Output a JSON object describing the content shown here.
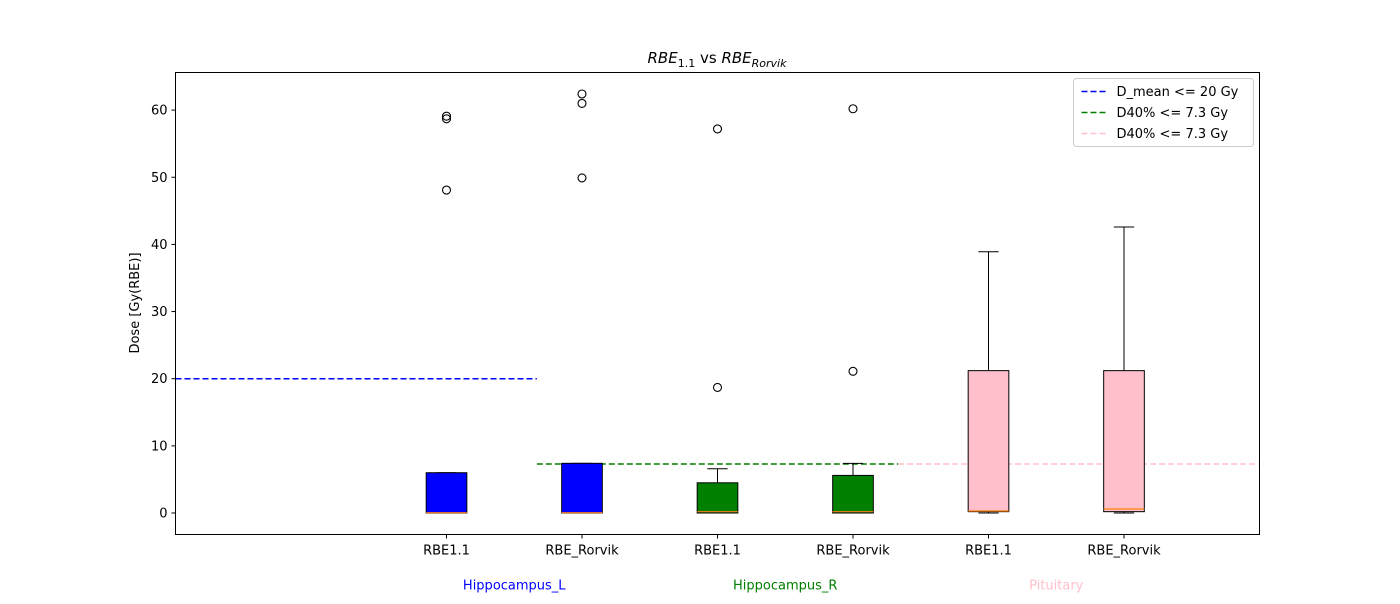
{
  "chart_data": {
    "type": "box",
    "title": {
      "a_base": "RBE",
      "a_sub": "1.1",
      "middle": " vs ",
      "b_base": "RBE",
      "b_sub": "Rorvik"
    },
    "ylabel": "Dose [Gy(RBE)]",
    "ylim": [
      -3.2,
      65.6
    ],
    "yticks": [
      0,
      10,
      20,
      30,
      40,
      50,
      60
    ],
    "categories": [
      "RBE1.1",
      "RBE_Rorvik",
      "RBE1.1",
      "RBE_Rorvik",
      "RBE1.1",
      "RBE_Rorvik"
    ],
    "groups": [
      {
        "name": "Hippocampus_L",
        "color": "#0000ff"
      },
      {
        "name": "Hippocampus_R",
        "color": "#008000"
      },
      {
        "name": "Pituitary",
        "color": "#ffc0cb"
      }
    ],
    "boxes": [
      {
        "group": 0,
        "category": "RBE1.1",
        "whisker_low": 0.0,
        "q1": 0.0,
        "median": 0.05,
        "q3": 6.0,
        "whisker_high": 6.0,
        "fliers": [
          48.1,
          58.7,
          59.1
        ]
      },
      {
        "group": 0,
        "category": "RBE_Rorvik",
        "whisker_low": 0.0,
        "q1": 0.0,
        "median": 0.05,
        "q3": 7.4,
        "whisker_high": 7.4,
        "fliers": [
          49.9,
          61.0,
          62.4
        ]
      },
      {
        "group": 1,
        "category": "RBE1.1",
        "whisker_low": 0.0,
        "q1": 0.0,
        "median": 0.2,
        "q3": 4.5,
        "whisker_high": 6.6,
        "fliers": [
          18.7,
          57.2
        ]
      },
      {
        "group": 1,
        "category": "RBE_Rorvik",
        "whisker_low": 0.0,
        "q1": 0.0,
        "median": 0.2,
        "q3": 5.6,
        "whisker_high": 7.4,
        "fliers": [
          21.1,
          60.2
        ]
      },
      {
        "group": 2,
        "category": "RBE1.1",
        "whisker_low": 0.0,
        "q1": 0.2,
        "median": 0.3,
        "q3": 21.2,
        "whisker_high": 38.9,
        "fliers": []
      },
      {
        "group": 2,
        "category": "RBE_Rorvik",
        "whisker_low": 0.0,
        "q1": 0.2,
        "median": 0.6,
        "q3": 21.2,
        "whisker_high": 42.6,
        "fliers": []
      }
    ],
    "median_color": "#ff7f0e",
    "reference_lines": [
      {
        "label": "D_mean <= 20 Gy",
        "value": 20,
        "color": "#0000ff",
        "group": 0
      },
      {
        "label": "D40% <= 7.3 Gy",
        "value": 7.3,
        "color": "#008000",
        "group": 1
      },
      {
        "label": "D40% <= 7.3 Gy",
        "value": 7.3,
        "color": "#ffc0cb",
        "group": 2
      }
    ],
    "legend_position": "top-right",
    "grid": false
  }
}
